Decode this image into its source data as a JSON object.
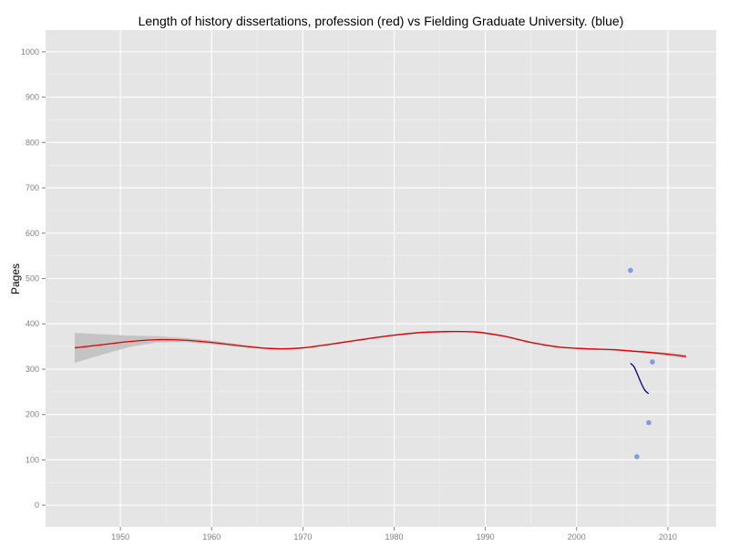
{
  "chart_data": {
    "type": "scatter",
    "title": "Length of history dissertations, profession (red) vs Fielding Graduate University. (blue)",
    "xlabel": "",
    "ylabel": "Pages",
    "xlim": [
      1941.8,
      2015.3
    ],
    "ylim": [
      -48,
      1048
    ],
    "x_ticks": [
      1950,
      1960,
      1970,
      1980,
      1990,
      2000,
      2010
    ],
    "y_ticks": [
      0,
      100,
      200,
      300,
      400,
      500,
      600,
      700,
      800,
      900,
      1000
    ],
    "grid": true,
    "colors": {
      "panel": "#e5e5e5",
      "grid_major": "#ffffff",
      "grid_minor": "#f2f2f2",
      "profession": "#e00000",
      "fielding_line": "#00008b",
      "fielding_points": "#6f95e0",
      "confidence_band": "#c2c2c2",
      "tick_label": "#7f7f7f"
    },
    "series": [
      {
        "kind": "line",
        "color": "profession",
        "x": [
          1945,
          1948,
          1951,
          1954,
          1957,
          1960,
          1963,
          1966,
          1968,
          1970,
          1973,
          1976,
          1980,
          1983,
          1986,
          1989,
          1992,
          1995,
          1998,
          2001,
          2004,
          2006,
          2008,
          2010,
          2012
        ],
        "y": [
          347,
          354,
          361,
          365,
          364,
          359,
          352,
          346,
          345,
          347,
          355,
          364,
          375,
          381,
          383,
          382,
          373,
          359,
          349,
          345,
          343,
          340,
          337,
          333,
          328
        ],
        "band_upper": [
          380,
          377,
          374,
          373,
          369,
          363,
          355,
          348,
          347,
          349,
          357,
          366,
          377,
          383,
          385,
          384,
          375,
          361,
          351,
          347,
          345,
          342,
          339,
          336,
          332
        ],
        "band_lower": [
          314,
          332,
          349,
          359,
          360,
          355,
          349,
          344,
          343,
          345,
          353,
          362,
          373,
          379,
          381,
          380,
          371,
          357,
          347,
          343,
          341,
          338,
          334,
          329,
          324
        ]
      },
      {
        "kind": "line",
        "color": "fielding_line",
        "x": [
          2005.9,
          2006.3,
          2006.7,
          2007.1,
          2007.5,
          2007.9
        ],
        "y": [
          313,
          305,
          287,
          268,
          253,
          246
        ]
      },
      {
        "kind": "points",
        "color": "fielding_points",
        "x": [
          2005.9,
          2006.6,
          2007.9,
          2008.3
        ],
        "y": [
          518,
          107,
          182,
          316
        ]
      }
    ]
  }
}
